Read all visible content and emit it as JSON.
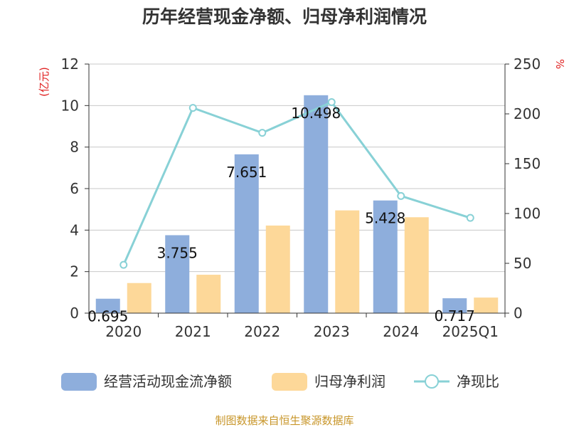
{
  "chart_data": {
    "type": "bar",
    "title": "历年经营现金净额、归母净利润情况",
    "left_axis_unit": "(亿元)",
    "right_axis_unit": "%",
    "categories": [
      "2020",
      "2021",
      "2022",
      "2023",
      "2024",
      "2025Q1"
    ],
    "ylim_left": [
      0,
      12
    ],
    "yticks_left": [
      "0",
      "2",
      "4",
      "6",
      "8",
      "10",
      "12"
    ],
    "ylim_right": [
      0,
      250
    ],
    "yticks_right": [
      "0",
      "50",
      "100",
      "150",
      "200",
      "250"
    ],
    "grid": true,
    "legend_position": "bottom",
    "series": [
      {
        "name": "经营活动现金流净额",
        "kind": "bar",
        "axis": "left",
        "color": "#8eaedc",
        "values": [
          0.695,
          3.755,
          7.651,
          10.498,
          5.428,
          0.717
        ],
        "labels": [
          "0.695",
          "3.755",
          "7.651",
          "10.498",
          "5.428",
          "0.717"
        ]
      },
      {
        "name": "归母净利润",
        "kind": "bar",
        "axis": "left",
        "color": "#fdd899",
        "values": [
          1.45,
          1.85,
          4.22,
          4.95,
          4.62,
          0.75
        ]
      },
      {
        "name": "净现比",
        "kind": "line",
        "axis": "right",
        "color": "#88d1d6",
        "values": [
          48.5,
          206.0,
          181.0,
          211.8,
          117.6,
          95.6
        ]
      }
    ]
  },
  "footer": {
    "source": "制图数据来自恒生聚源数据库"
  }
}
